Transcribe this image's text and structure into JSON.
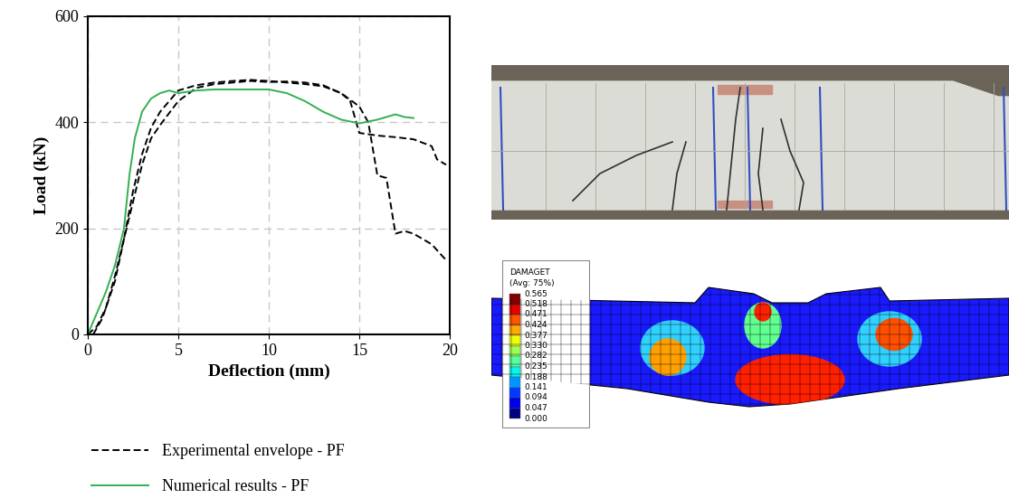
{
  "chart_data": {
    "type": "line",
    "x_label": "Deflection (mm)",
    "y_label": "Load (kN)",
    "xlim": [
      0,
      20
    ],
    "xticks": [
      0,
      5,
      10,
      15,
      20
    ],
    "ylim": [
      0,
      600
    ],
    "yticks": [
      0,
      200,
      400,
      600
    ],
    "grid": true,
    "legend": "below",
    "series": [
      {
        "name": "Experimental envelope - PF",
        "color": "#000000",
        "line_style": "dashed",
        "x": [
          0.3,
          0.8,
          1.5,
          2.0,
          2.5,
          3.0,
          3.5,
          4.0,
          5.0,
          6.0,
          7.0,
          8.0,
          9.0,
          10.0,
          11.0,
          12.0,
          13.0,
          14.0,
          14.5,
          15.0,
          16.0,
          17.0,
          18.0,
          19.0,
          19.3,
          19.8
        ],
        "values": [
          0,
          30,
          100,
          180,
          250,
          320,
          370,
          395,
          440,
          465,
          472,
          475,
          478,
          476,
          477,
          475,
          470,
          455,
          440,
          380,
          375,
          372,
          368,
          355,
          330,
          320
        ]
      },
      {
        "color": "#000000",
        "line_style": "dashed",
        "x": [
          0.0,
          0.5,
          1.0,
          1.5,
          2.0,
          2.5,
          3.0,
          3.5,
          4.0,
          5.0,
          6.0,
          7.0,
          8.0,
          9.0,
          10.0,
          11.0,
          12.0,
          13.0,
          14.0,
          15.0,
          15.5,
          16.0,
          16.5,
          17.0,
          17.5,
          18.0,
          19.0,
          19.8
        ],
        "values": [
          0,
          15,
          50,
          110,
          180,
          270,
          340,
          390,
          420,
          460,
          470,
          475,
          478,
          480,
          478,
          475,
          472,
          468,
          455,
          430,
          400,
          300,
          295,
          190,
          195,
          190,
          170,
          140
        ]
      },
      {
        "name": "Numerical results - PF",
        "color": "#33b050",
        "line_style": "solid",
        "x": [
          0.0,
          0.5,
          1.0,
          1.5,
          2.0,
          2.3,
          2.6,
          3.0,
          3.5,
          4.0,
          4.5,
          5.0,
          6.0,
          7.0,
          8.0,
          9.0,
          10.0,
          11.0,
          12.0,
          13.0,
          14.0,
          15.0,
          16.0,
          17.0,
          17.5,
          18.0
        ],
        "values": [
          0,
          40,
          80,
          130,
          200,
          300,
          370,
          420,
          445,
          455,
          460,
          455,
          460,
          462,
          462,
          462,
          462,
          455,
          440,
          420,
          405,
          398,
          405,
          415,
          410,
          408
        ]
      }
    ]
  },
  "contour_legend": {
    "title": "DAMAGET",
    "subtitle": "(Avg: 75%)",
    "levels": [
      "0.565",
      "0.518",
      "0.471",
      "0.424",
      "0.377",
      "0.330",
      "0.282",
      "0.235",
      "0.188",
      "0.141",
      "0.094",
      "0.047",
      "0.000"
    ]
  }
}
